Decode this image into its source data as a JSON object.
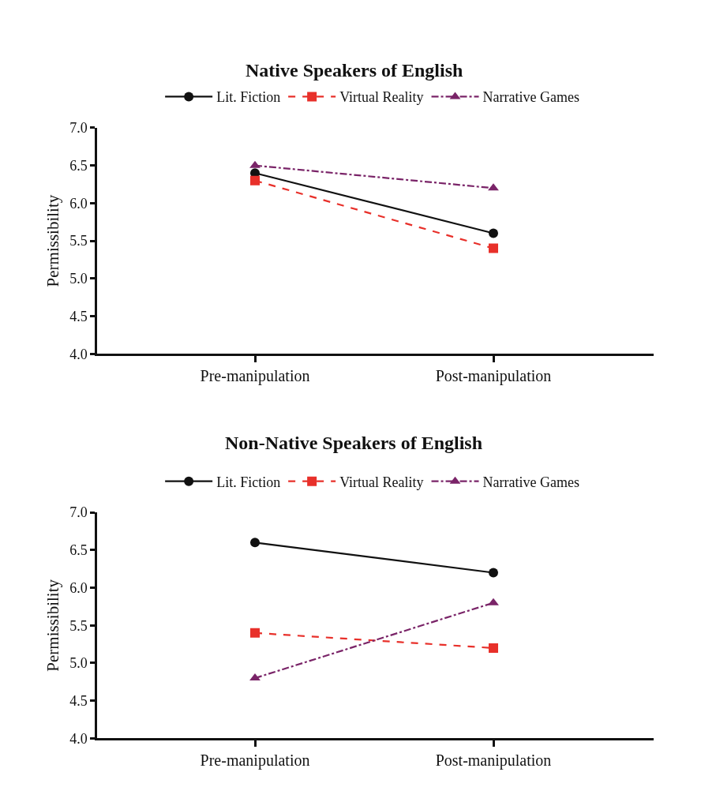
{
  "chart_data": [
    {
      "type": "line",
      "title": "Native Speakers of English",
      "ylabel": "Permissibility",
      "categories": [
        "Pre-manipulation",
        "Post-manipulation"
      ],
      "ylim": [
        4.0,
        7.0
      ],
      "yticks": [
        {
          "value": 4,
          "label": "4.0"
        },
        {
          "value": 4.5,
          "label": "4.5"
        },
        {
          "value": 5,
          "label": "5.0"
        },
        {
          "value": 5.5,
          "label": "5.5"
        },
        {
          "value": 6,
          "label": "6.0"
        },
        {
          "value": 6.5,
          "label": "6.5"
        },
        {
          "value": 7,
          "label": "7.0"
        }
      ],
      "legend": "top",
      "series": [
        {
          "name": "Lit. Fiction",
          "color": "#111111",
          "values": [
            6.4,
            5.6
          ],
          "marker": "circle",
          "line_style": "solid"
        },
        {
          "name": "Virtual Reality",
          "color": "#e8302a",
          "values": [
            6.3,
            5.4
          ],
          "marker": "square",
          "line_style": "dashed"
        },
        {
          "name": "Narrative Games",
          "color": "#7a2468",
          "values": [
            6.5,
            6.2
          ],
          "marker": "triangle",
          "line_style": "dashdot"
        }
      ]
    },
    {
      "type": "line",
      "title": "Non-Native Speakers of English",
      "ylabel": "Permissibility",
      "categories": [
        "Pre-manipulation",
        "Post-manipulation"
      ],
      "ylim": [
        4.0,
        7.0
      ],
      "yticks": [
        {
          "value": 4,
          "label": "4.0"
        },
        {
          "value": 4.5,
          "label": "4.5"
        },
        {
          "value": 5,
          "label": "5.0"
        },
        {
          "value": 5.5,
          "label": "5.5"
        },
        {
          "value": 6,
          "label": "6.0"
        },
        {
          "value": 6.5,
          "label": "6.5"
        },
        {
          "value": 7,
          "label": "7.0"
        }
      ],
      "legend": "top",
      "series": [
        {
          "name": "Lit. Fiction",
          "color": "#111111",
          "values": [
            6.6,
            6.2
          ],
          "marker": "circle",
          "line_style": "solid"
        },
        {
          "name": "Virtual Reality",
          "color": "#e8302a",
          "values": [
            5.4,
            5.2
          ],
          "marker": "square",
          "line_style": "dashed"
        },
        {
          "name": "Narrative Games",
          "color": "#7a2468",
          "values": [
            4.8,
            5.8
          ],
          "marker": "triangle",
          "line_style": "dashdot"
        }
      ]
    }
  ]
}
